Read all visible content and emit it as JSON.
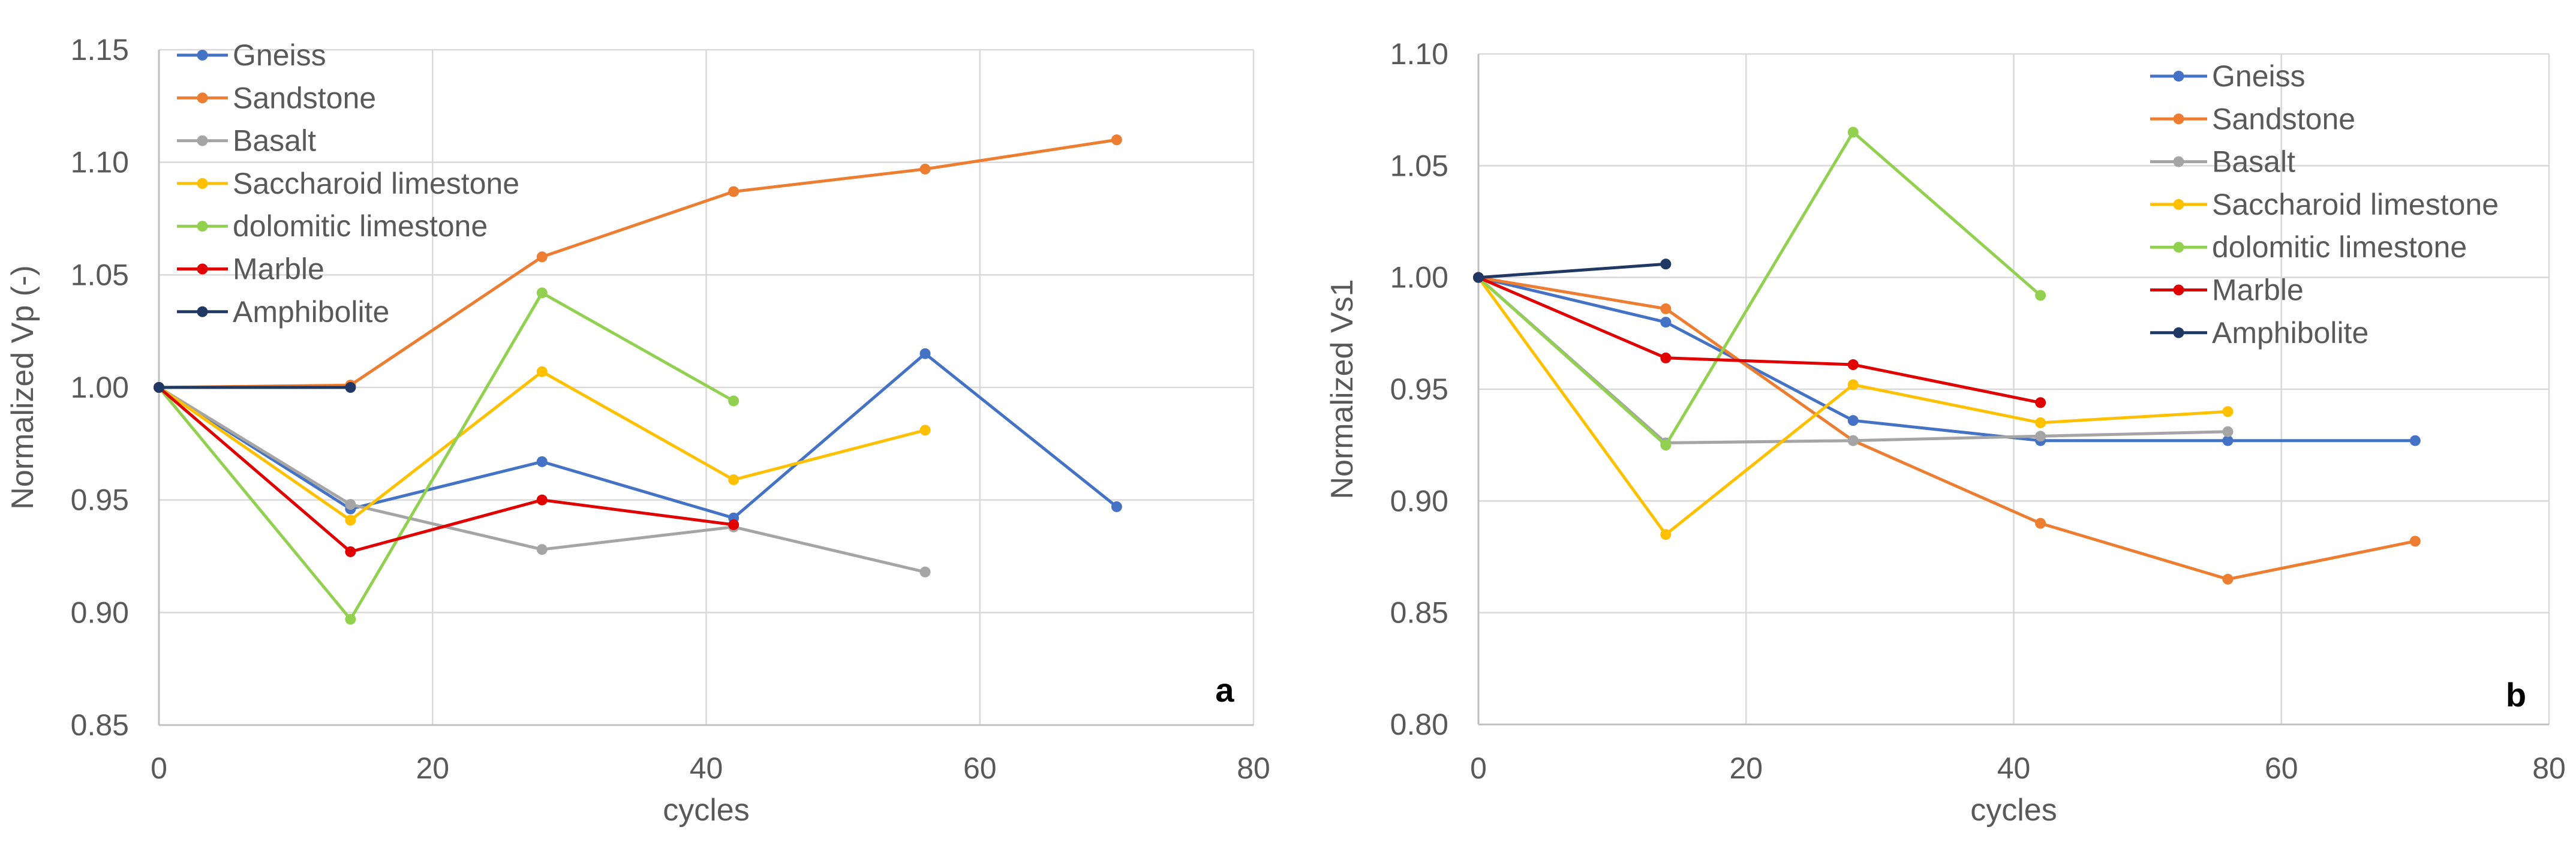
{
  "chart_data": [
    {
      "type": "line",
      "panel_label": "a",
      "xlabel": "cycles",
      "ylabel": "Normalized Vp (-)",
      "xlim": [
        0,
        80
      ],
      "ylim": [
        0.85,
        1.15
      ],
      "x_ticks": [
        0,
        20,
        40,
        60,
        80
      ],
      "y_ticks": [
        0.85,
        0.9,
        0.95,
        1.0,
        1.05,
        1.1,
        1.15
      ],
      "x_tick_labels": [
        "0",
        "20",
        "40",
        "60",
        "80"
      ],
      "y_tick_labels": [
        "0.85",
        "0.90",
        "0.95",
        "1.00",
        "1.05",
        "1.10",
        "1.15"
      ],
      "grid": true,
      "legend_position": "top-left",
      "series": [
        {
          "name": "Gneiss",
          "color": "#4472C4",
          "x": [
            0,
            14,
            28,
            42,
            56,
            70
          ],
          "y": [
            1.0,
            0.946,
            0.967,
            0.942,
            1.015,
            0.947
          ]
        },
        {
          "name": "Sandstone",
          "color": "#ED7D31",
          "x": [
            0,
            14,
            28,
            42,
            56,
            70
          ],
          "y": [
            1.0,
            1.001,
            1.058,
            1.087,
            1.097,
            1.11
          ]
        },
        {
          "name": "Basalt",
          "color": "#A5A5A5",
          "x": [
            0,
            14,
            28,
            42,
            56
          ],
          "y": [
            1.0,
            0.948,
            0.928,
            0.938,
            0.918
          ]
        },
        {
          "name": "Saccharoid limestone",
          "color": "#FFC000",
          "x": [
            0,
            14,
            28,
            42,
            56
          ],
          "y": [
            1.0,
            0.941,
            1.007,
            0.959,
            0.981
          ]
        },
        {
          "name": "dolomitic limestone",
          "color": "#92D050",
          "x": [
            0,
            14,
            28,
            42
          ],
          "y": [
            1.0,
            0.897,
            1.042,
            0.994
          ]
        },
        {
          "name": "Marble",
          "color": "#E00000",
          "x": [
            0,
            14,
            28,
            42
          ],
          "y": [
            1.0,
            0.927,
            0.95,
            0.939
          ]
        },
        {
          "name": "Amphibolite",
          "color": "#203864",
          "x": [
            0,
            14
          ],
          "y": [
            1.0,
            1.0
          ]
        }
      ]
    },
    {
      "type": "line",
      "panel_label": "b",
      "xlabel": "cycles",
      "ylabel": "Normalized  Vs1",
      "xlim": [
        0,
        80
      ],
      "ylim": [
        0.8,
        1.1
      ],
      "x_ticks": [
        0,
        20,
        40,
        60,
        80
      ],
      "y_ticks": [
        0.8,
        0.85,
        0.9,
        0.95,
        1.0,
        1.05,
        1.1
      ],
      "x_tick_labels": [
        "0",
        "20",
        "40",
        "60",
        "80"
      ],
      "y_tick_labels": [
        "0.80",
        "0.85",
        "0.90",
        "0.95",
        "1.00",
        "1.05",
        "1.10"
      ],
      "grid": true,
      "legend_position": "top-right",
      "series": [
        {
          "name": "Gneiss",
          "color": "#4472C4",
          "x": [
            0,
            14,
            28,
            42,
            56,
            70
          ],
          "y": [
            1.0,
            0.98,
            0.936,
            0.927,
            0.927,
            0.927
          ]
        },
        {
          "name": "Sandstone",
          "color": "#ED7D31",
          "x": [
            0,
            14,
            28,
            42,
            56,
            70
          ],
          "y": [
            1.0,
            0.986,
            0.927,
            0.89,
            0.865,
            0.882
          ]
        },
        {
          "name": "Basalt",
          "color": "#A5A5A5",
          "x": [
            0,
            14,
            28,
            42,
            56
          ],
          "y": [
            1.0,
            0.926,
            0.927,
            0.929,
            0.931
          ]
        },
        {
          "name": "Saccharoid limestone",
          "color": "#FFC000",
          "x": [
            0,
            14,
            28,
            42,
            56
          ],
          "y": [
            1.0,
            0.885,
            0.952,
            0.935,
            0.94
          ]
        },
        {
          "name": "dolomitic limestone",
          "color": "#92D050",
          "x": [
            0,
            14,
            28,
            42
          ],
          "y": [
            1.0,
            0.925,
            1.065,
            0.992
          ]
        },
        {
          "name": "Marble",
          "color": "#E00000",
          "x": [
            0,
            14,
            28,
            42
          ],
          "y": [
            1.0,
            0.964,
            0.961,
            0.944
          ]
        },
        {
          "name": "Amphibolite",
          "color": "#203864",
          "x": [
            0,
            14
          ],
          "y": [
            1.0,
            1.006
          ]
        }
      ]
    }
  ]
}
